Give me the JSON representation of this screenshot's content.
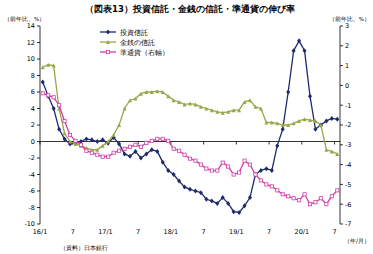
{
  "chart_data": {
    "type": "line",
    "title": "（図表13）投資信託・金銭の信託・準通貨の伸び率",
    "y_label": "（前年比、%）",
    "y2_label": "（前年比、%）",
    "x_label": "（年/月）",
    "source": "（資料）日本銀行",
    "categories": [
      "16/1",
      null,
      null,
      null,
      null,
      null,
      "7",
      null,
      null,
      null,
      null,
      null,
      "17/1",
      null,
      null,
      null,
      null,
      null,
      "7",
      null,
      null,
      null,
      null,
      null,
      "18/1",
      null,
      null,
      null,
      null,
      null,
      "7",
      null,
      null,
      null,
      null,
      null,
      "19/1",
      null,
      null,
      null,
      null,
      null,
      "7",
      null,
      null,
      null,
      null,
      null,
      "20/1",
      null,
      null,
      null,
      null,
      null,
      "7"
    ],
    "ylim": [
      -10,
      14
    ],
    "yticks": [
      -10,
      -8,
      -6,
      -4,
      -2,
      0,
      2,
      4,
      6,
      8,
      10,
      12,
      14
    ],
    "y2lim": [
      -7,
      3
    ],
    "y2ticks": [
      -7,
      -6,
      -5,
      -4,
      -3,
      -2,
      -1,
      0,
      1,
      2,
      3
    ],
    "grid": false,
    "legend": "upper-left",
    "series": [
      {
        "name": "投資信託",
        "color": "#1f2a6e",
        "marker": "diamond",
        "line_style": "solid",
        "values": [
          7.2,
          5.5,
          4.0,
          1.5,
          0.3,
          -0.3,
          -0.2,
          0.0,
          0.3,
          0.2,
          0.0,
          0.2,
          -0.2,
          0.5,
          -0.3,
          -1.5,
          -1.8,
          -1.2,
          -2.0,
          -1.5,
          -1.0,
          -1.2,
          -2.5,
          -3.5,
          -4.0,
          -4.8,
          -5.5,
          -5.8,
          -6.0,
          -6.2,
          -7.0,
          -7.2,
          -7.5,
          -6.8,
          -7.5,
          -8.5,
          -8.6,
          -7.8,
          -6.8,
          -4.0,
          -3.5,
          -3.3,
          -3.5,
          -0.5,
          1.5,
          6.0,
          11.0,
          12.2,
          11.0,
          5.5,
          1.5,
          2.0,
          2.5,
          2.8,
          2.7
        ]
      },
      {
        "name": "金銭の信託",
        "color": "#9aa64a",
        "marker": "triangle",
        "line_style": "solid",
        "values": [
          9.0,
          9.3,
          9.2,
          4.0,
          1.0,
          0.0,
          -0.3,
          -0.5,
          -0.8,
          -1.0,
          -1.0,
          -0.5,
          0.0,
          0.8,
          2.0,
          4.0,
          5.0,
          5.2,
          5.8,
          6.0,
          6.0,
          6.1,
          6.0,
          5.5,
          5.0,
          4.8,
          4.5,
          4.6,
          4.5,
          4.2,
          4.0,
          3.8,
          3.6,
          3.5,
          3.6,
          3.8,
          3.8,
          4.8,
          5.0,
          4.2,
          4.0,
          2.3,
          2.3,
          2.2,
          2.0,
          2.0,
          2.2,
          2.5,
          2.7,
          2.6,
          2.5,
          2.0,
          -1.0,
          -1.2,
          -1.5
        ]
      },
      {
        "name": "準通貨（右軸）",
        "color": "#d23ca8",
        "marker": "square",
        "line_style": "solid",
        "axis": "y2",
        "values": [
          -0.4,
          -0.5,
          -0.6,
          -1.0,
          -1.8,
          -2.5,
          -2.8,
          -3.0,
          -3.3,
          -3.4,
          -3.5,
          -3.6,
          -3.6,
          -3.4,
          -3.3,
          -3.2,
          -3.1,
          -3.0,
          -3.1,
          -2.9,
          -2.8,
          -2.7,
          -2.7,
          -2.8,
          -3.2,
          -3.3,
          -3.5,
          -3.7,
          -3.8,
          -4.0,
          -4.2,
          -4.3,
          -4.3,
          -3.9,
          -4.1,
          -4.5,
          -4.4,
          -3.8,
          -4.0,
          -4.5,
          -4.8,
          -5.0,
          -5.1,
          -5.3,
          -5.5,
          -5.6,
          -5.7,
          -5.8,
          -5.5,
          -6.0,
          -5.9,
          -5.7,
          -6.0,
          -5.6,
          -5.3
        ]
      }
    ]
  }
}
